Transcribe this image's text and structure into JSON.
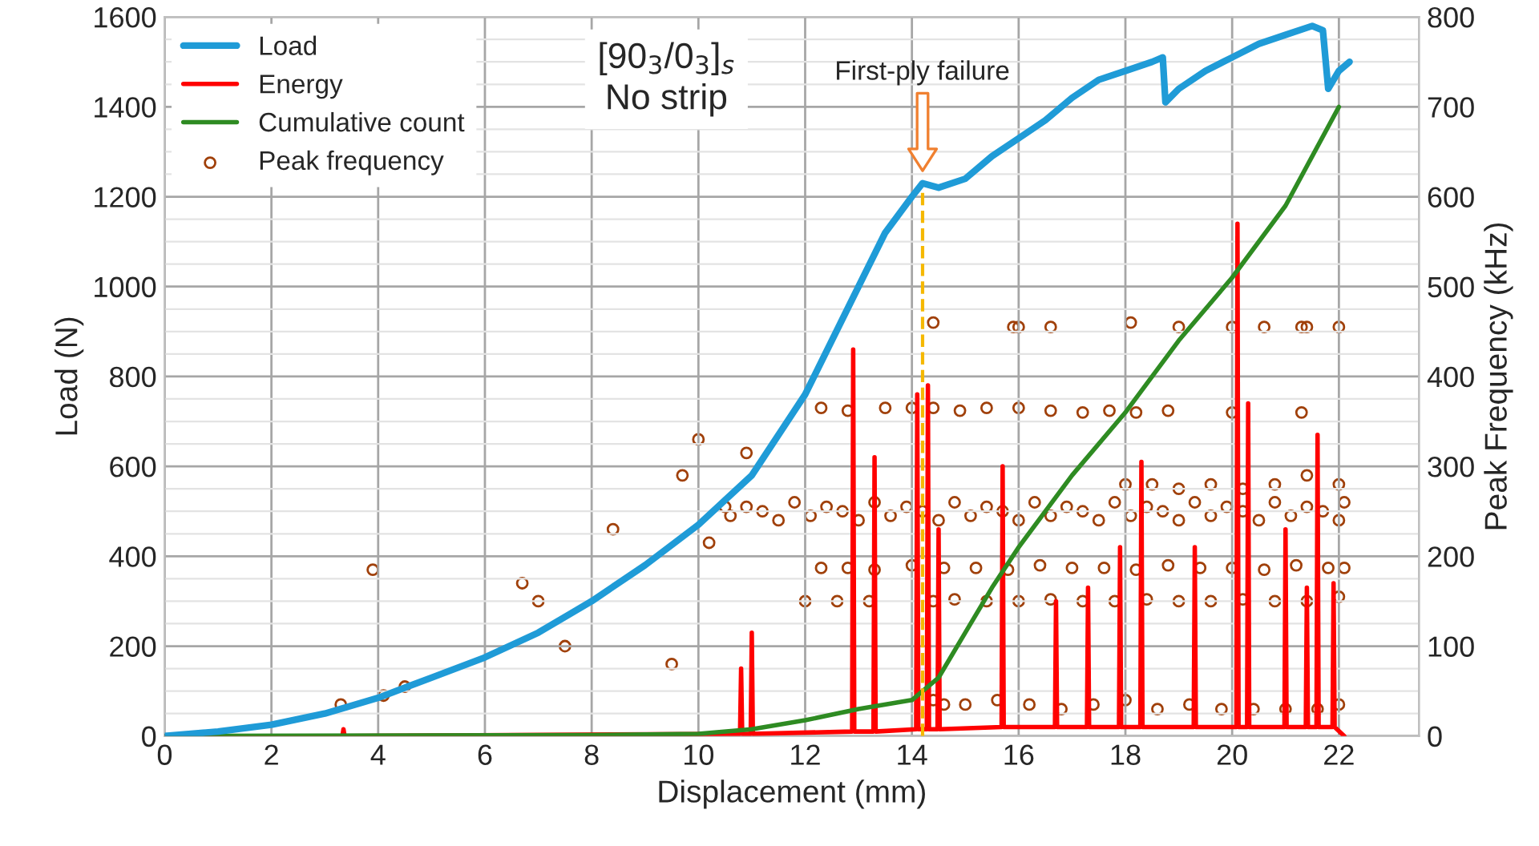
{
  "chart_data": {
    "type": "line",
    "xlabel": "Displacement (mm)",
    "ylabel": "Load (N)",
    "y2label": "Peak Frequency (kHz)",
    "xlim": [
      0,
      23.5
    ],
    "xticks": [
      0,
      2,
      4,
      6,
      8,
      10,
      12,
      14,
      16,
      18,
      20,
      22
    ],
    "ylim": [
      0,
      1600
    ],
    "yticks": [
      0,
      200,
      400,
      600,
      800,
      1000,
      1200,
      1400,
      1600
    ],
    "y2lim": [
      0,
      800
    ],
    "y2ticks": [
      0,
      100,
      200,
      300,
      400,
      500,
      600,
      700,
      800
    ],
    "grid": true,
    "legend": "top left",
    "ref_lines": [
      {
        "axis": "x",
        "value": 14.2,
        "color": "#f5b800",
        "line_style": "dashed"
      }
    ],
    "annotations": [
      "[90$_{3}$/0$_{3}$]$_{s}$\nNo strip",
      "First-ply failure"
    ],
    "series": [
      {
        "name": "Load",
        "color": "#1f9bd7",
        "x": [
          0,
          1,
          2,
          3,
          4,
          5,
          6,
          7,
          8,
          9,
          10,
          11,
          12,
          13,
          13.5,
          14,
          14.2,
          14.5,
          15,
          15.5,
          16,
          16.5,
          17,
          17.5,
          18,
          18.5,
          18.7,
          18.75,
          19,
          19.5,
          20,
          20.5,
          21,
          21.5,
          21.7,
          21.8,
          22,
          22.2
        ],
        "values": [
          0,
          10,
          25,
          50,
          85,
          130,
          175,
          230,
          300,
          380,
          470,
          580,
          760,
          1000,
          1120,
          1200,
          1230,
          1220,
          1240,
          1290,
          1330,
          1370,
          1420,
          1460,
          1480,
          1500,
          1510,
          1410,
          1440,
          1480,
          1510,
          1540,
          1560,
          1580,
          1570,
          1440,
          1480,
          1500
        ]
      },
      {
        "name": "Energy",
        "color": "#ff0000",
        "x": [
          0,
          3.33,
          3.35,
          3.37,
          10.78,
          10.8,
          10.82,
          10.98,
          11.0,
          11.02,
          12.88,
          12.9,
          12.92,
          13.28,
          13.3,
          13.32,
          14.08,
          14.1,
          14.12,
          14.28,
          14.3,
          14.32,
          14.48,
          14.5,
          14.52,
          15.68,
          15.7,
          15.72,
          16.68,
          16.7,
          16.72,
          17.28,
          17.3,
          17.32,
          17.88,
          17.9,
          17.92,
          18.28,
          18.3,
          18.32,
          19.28,
          19.3,
          19.32,
          20.08,
          20.1,
          20.12,
          20.28,
          20.3,
          20.32,
          20.98,
          21.0,
          21.02,
          21.38,
          21.4,
          21.42,
          21.58,
          21.6,
          21.62,
          21.88,
          21.9,
          21.92,
          22.1
        ],
        "values": [
          0,
          0,
          15,
          0,
          5,
          150,
          5,
          5,
          230,
          5,
          10,
          860,
          10,
          10,
          620,
          10,
          15,
          760,
          15,
          15,
          780,
          15,
          15,
          460,
          15,
          20,
          600,
          20,
          20,
          300,
          20,
          20,
          330,
          20,
          20,
          420,
          20,
          20,
          610,
          20,
          20,
          420,
          20,
          20,
          1140,
          20,
          20,
          740,
          20,
          20,
          460,
          20,
          20,
          330,
          20,
          20,
          670,
          20,
          20,
          340,
          20,
          0
        ]
      },
      {
        "name": "Cumulative count",
        "color": "#2e8b22",
        "x": [
          0,
          8,
          10,
          11,
          12,
          13,
          14,
          14.5,
          15,
          15.5,
          16,
          17,
          18,
          19,
          20,
          21,
          22
        ],
        "values": [
          0,
          2,
          5,
          15,
          35,
          60,
          80,
          130,
          230,
          330,
          420,
          580,
          720,
          880,
          1020,
          1180,
          1400
        ]
      },
      {
        "name": "Peak frequency",
        "type": "scatter",
        "axis": "y2",
        "marker": "circle",
        "color": "#a0400a",
        "x": [
          3.3,
          3.9,
          4.1,
          4.5,
          6.7,
          7.0,
          7.5,
          8.4,
          9.5,
          9.7,
          10.0,
          10.2,
          10.5,
          10.9,
          10.6,
          10.9,
          11.2,
          11.5,
          11.8,
          12.1,
          12.4,
          12.7,
          13.0,
          13.3,
          13.6,
          13.9,
          14.2,
          14.5,
          14.8,
          15.1,
          15.4,
          15.7,
          16.0,
          16.3,
          16.6,
          16.9,
          17.2,
          17.5,
          17.8,
          18.1,
          18.4,
          18.7,
          19.0,
          19.3,
          19.6,
          19.9,
          20.2,
          20.5,
          20.8,
          21.1,
          21.4,
          21.7,
          22.0,
          22.1,
          12.3,
          12.8,
          13.3,
          14.0,
          14.6,
          15.2,
          15.8,
          16.4,
          17.0,
          17.6,
          18.2,
          18.8,
          19.4,
          20.0,
          20.6,
          21.2,
          21.8,
          22.1,
          12.0,
          12.6,
          13.2,
          14.4,
          14.8,
          15.4,
          16.0,
          16.6,
          17.2,
          17.8,
          18.4,
          19.0,
          19.6,
          20.2,
          20.8,
          21.4,
          22.0,
          12.3,
          12.8,
          13.5,
          14.0,
          14.4,
          14.9,
          15.4,
          16.0,
          16.6,
          17.2,
          17.7,
          18.2,
          18.8,
          20.0,
          21.3,
          14.4,
          15.9,
          16.0,
          16.6,
          18.1,
          19.0,
          20.0,
          20.6,
          21.3,
          21.4,
          22.0,
          14.4,
          14.6,
          15.0,
          15.6,
          16.2,
          16.8,
          17.4,
          18.0,
          18.6,
          19.2,
          19.8,
          20.4,
          21.0,
          21.6,
          22.0,
          18.0,
          18.5,
          19.0,
          19.6,
          20.2,
          20.8,
          21.4,
          22.0
        ],
        "values": [
          35,
          185,
          45,
          55,
          170,
          150,
          100,
          230,
          80,
          290,
          330,
          215,
          255,
          315,
          245,
          255,
          250,
          240,
          260,
          245,
          255,
          250,
          240,
          260,
          245,
          255,
          250,
          240,
          260,
          245,
          255,
          250,
          240,
          260,
          245,
          255,
          250,
          240,
          260,
          245,
          255,
          250,
          240,
          260,
          245,
          255,
          250,
          240,
          260,
          245,
          255,
          250,
          240,
          260,
          187,
          187,
          185,
          190,
          187,
          187,
          185,
          190,
          187,
          187,
          185,
          190,
          187,
          187,
          185,
          190,
          187,
          187,
          150,
          150,
          150,
          150,
          152,
          150,
          150,
          152,
          150,
          150,
          152,
          150,
          150,
          152,
          150,
          150,
          155,
          365,
          362,
          365,
          365,
          365,
          362,
          365,
          365,
          362,
          360,
          362,
          360,
          362,
          360,
          360,
          460,
          455,
          455,
          455,
          460,
          455,
          455,
          455,
          455,
          455,
          455,
          40,
          35,
          35,
          40,
          35,
          30,
          35,
          40,
          30,
          35,
          30,
          30,
          30,
          30,
          35,
          280,
          280,
          275,
          280,
          275,
          280,
          290,
          280
        ]
      }
    ]
  }
}
